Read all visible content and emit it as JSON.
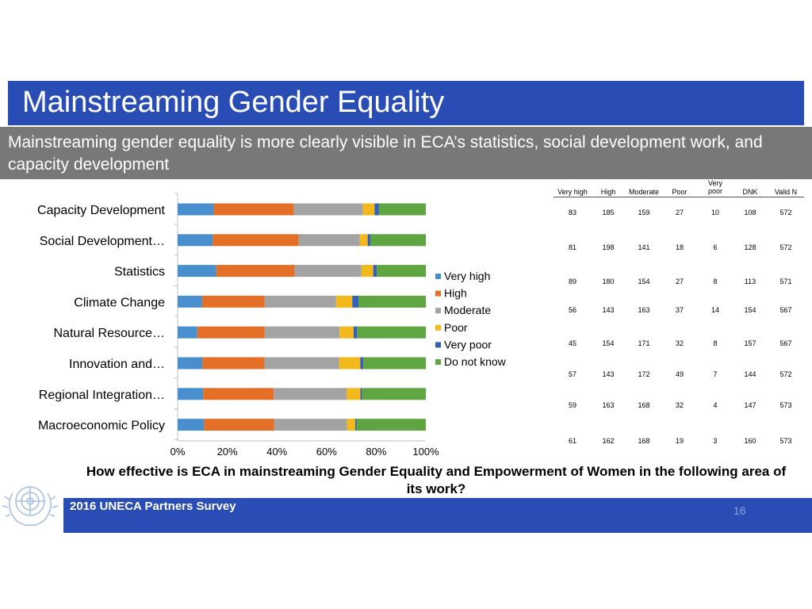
{
  "slide": {
    "title": "Mainstreaming Gender Equality",
    "subtitle": "Mainstreaming gender equality is more clearly visible in ECA’s statistics, social development work, and capacity development",
    "question": "How effective is ECA in mainstreaming Gender Equality and Empowerment of Women in the following area of its work?",
    "footer": "2016 UNECA Partners Survey",
    "page_number": "16"
  },
  "colors": {
    "title_bar": "#2a4db5",
    "subtitle_bar": "#787878",
    "footer_bar": "#2a4db5"
  },
  "chart_data": {
    "type": "bar",
    "orientation": "horizontal",
    "stacked": "percent",
    "categories": [
      "Capacity Development",
      "Social Development…",
      "Statistics",
      "Climate Change",
      "Natural Resource…",
      "Innovation and…",
      "Regional Integration…",
      "Macroeconomic Policy"
    ],
    "series": [
      {
        "name": "Very high",
        "color": "#4a8fcd",
        "values": [
          83,
          81,
          89,
          56,
          45,
          57,
          59,
          61
        ]
      },
      {
        "name": "High",
        "color": "#e46f26",
        "values": [
          185,
          198,
          180,
          143,
          154,
          143,
          163,
          162
        ]
      },
      {
        "name": "Moderate",
        "color": "#a3a3a3",
        "values": [
          159,
          141,
          154,
          163,
          171,
          172,
          168,
          168
        ]
      },
      {
        "name": "Poor",
        "color": "#f2b81c",
        "values": [
          27,
          18,
          27,
          37,
          32,
          49,
          32,
          19
        ]
      },
      {
        "name": "Very poor",
        "color": "#3660b7",
        "values": [
          10,
          6,
          8,
          14,
          8,
          7,
          4,
          3
        ]
      },
      {
        "name": "Do not know",
        "color": "#5fa541",
        "values": [
          108,
          128,
          113,
          154,
          157,
          144,
          147,
          160
        ]
      }
    ],
    "xlim": [
      0,
      100
    ],
    "xticks": [
      "0%",
      "20%",
      "40%",
      "60%",
      "80%",
      "100%"
    ],
    "legend_position": "right",
    "table": {
      "headers": [
        "Very high",
        "High",
        "Moderate",
        "Poor",
        "Very poor",
        "DNK",
        "Valid N"
      ],
      "rows": [
        [
          "83",
          "185",
          "159",
          "27",
          "10",
          "108",
          "572"
        ],
        [
          "81",
          "198",
          "141",
          "18",
          "6",
          "128",
          "572"
        ],
        [
          "89",
          "180",
          "154",
          "27",
          "8",
          "113",
          "571"
        ],
        [
          "56",
          "143",
          "163",
          "37",
          "14",
          "154",
          "567"
        ],
        [
          "45",
          "154",
          "171",
          "32",
          "8",
          "157",
          "567"
        ],
        [
          "57",
          "143",
          "172",
          "49",
          "7",
          "144",
          "572"
        ],
        [
          "59",
          "163",
          "168",
          "32",
          "4",
          "147",
          "573"
        ],
        [
          "61",
          "162",
          "168",
          "19",
          "3",
          "160",
          "573"
        ]
      ]
    }
  }
}
